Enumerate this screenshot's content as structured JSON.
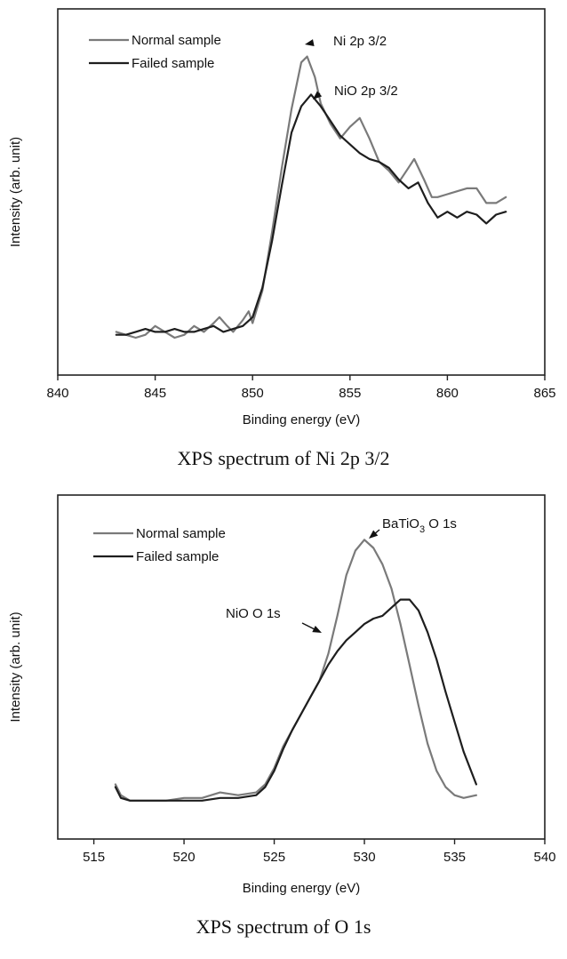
{
  "chart_data": [
    {
      "type": "line",
      "caption": "XPS spectrum of Ni 2p 3/2",
      "xlabel": "Binding energy (eV)",
      "ylabel": "Intensity (arb. unit)",
      "xlim": [
        840,
        865
      ],
      "ylim": [
        0,
        1
      ],
      "xticks": [
        840,
        845,
        850,
        855,
        860,
        865
      ],
      "yticks_shown": false,
      "grid": false,
      "legend_position": "top-left",
      "series": [
        {
          "name": "Normal sample",
          "color": "#7a7a7a",
          "x": [
            843,
            843.5,
            844,
            844.5,
            845,
            845.5,
            846,
            846.5,
            847,
            847.5,
            848,
            848.3,
            848.7,
            849,
            849.5,
            849.8,
            850,
            850.5,
            851,
            851.5,
            852,
            852.5,
            852.8,
            853.2,
            853.5,
            854,
            854.5,
            855,
            855.5,
            856,
            856.5,
            857,
            857.5,
            858,
            858.3,
            858.8,
            859.2,
            859.5,
            860,
            860.5,
            861,
            861.5,
            862,
            862.5,
            863
          ],
          "y": [
            0.06,
            0.05,
            0.04,
            0.05,
            0.08,
            0.06,
            0.04,
            0.05,
            0.08,
            0.06,
            0.09,
            0.11,
            0.08,
            0.06,
            0.1,
            0.13,
            0.09,
            0.2,
            0.4,
            0.62,
            0.82,
            0.98,
            1.0,
            0.93,
            0.84,
            0.77,
            0.72,
            0.76,
            0.79,
            0.72,
            0.64,
            0.61,
            0.57,
            0.62,
            0.65,
            0.58,
            0.52,
            0.52,
            0.53,
            0.54,
            0.55,
            0.55,
            0.5,
            0.5,
            0.52
          ]
        },
        {
          "name": "Failed sample",
          "color": "#1e1e1e",
          "x": [
            843,
            843.5,
            844,
            844.5,
            845,
            845.5,
            846,
            846.5,
            847,
            847.5,
            848,
            848.5,
            849,
            849.5,
            850,
            850.5,
            851,
            851.5,
            852,
            852.5,
            853,
            853.5,
            854,
            854.5,
            855,
            855.5,
            856,
            856.5,
            857,
            857.5,
            858,
            858.5,
            859,
            859.5,
            860,
            860.5,
            861,
            861.5,
            862,
            862.5,
            863
          ],
          "y": [
            0.05,
            0.05,
            0.06,
            0.07,
            0.06,
            0.06,
            0.07,
            0.06,
            0.06,
            0.07,
            0.08,
            0.06,
            0.07,
            0.08,
            0.11,
            0.21,
            0.37,
            0.56,
            0.74,
            0.83,
            0.87,
            0.83,
            0.78,
            0.73,
            0.7,
            0.67,
            0.65,
            0.64,
            0.62,
            0.58,
            0.55,
            0.57,
            0.5,
            0.45,
            0.47,
            0.45,
            0.47,
            0.46,
            0.43,
            0.46,
            0.47
          ]
        }
      ],
      "annotations": [
        {
          "text": "Ni 2p 3/2",
          "x": 852.9,
          "y": 1.0
        },
        {
          "text": "NiO 2p 3/2",
          "x": 853.5,
          "y": 0.86
        }
      ]
    },
    {
      "type": "line",
      "caption": "XPS spectrum of O 1s",
      "xlabel": "Binding energy (eV)",
      "ylabel": "Intensity (arb. unit)",
      "xlim": [
        513,
        540
      ],
      "ylim": [
        0,
        1
      ],
      "xticks": [
        515,
        520,
        525,
        530,
        535,
        540
      ],
      "yticks_shown": false,
      "grid": false,
      "legend_position": "top-left",
      "series": [
        {
          "name": "Normal sample",
          "color": "#7a7a7a",
          "x": [
            516.2,
            516.5,
            517,
            518,
            519,
            520,
            521,
            522,
            523,
            524,
            524.5,
            525,
            525.5,
            526,
            526.5,
            527,
            527.5,
            528,
            528.5,
            529,
            529.5,
            530,
            530.5,
            531,
            531.5,
            532,
            532.5,
            533,
            533.5,
            534,
            534.5,
            535,
            535.5,
            536.2
          ],
          "y": [
            0.1,
            0.06,
            0.04,
            0.04,
            0.04,
            0.05,
            0.05,
            0.07,
            0.06,
            0.07,
            0.1,
            0.16,
            0.24,
            0.3,
            0.36,
            0.42,
            0.48,
            0.58,
            0.72,
            0.87,
            0.96,
            1.0,
            0.97,
            0.91,
            0.82,
            0.69,
            0.54,
            0.39,
            0.25,
            0.15,
            0.09,
            0.06,
            0.05,
            0.06
          ]
        },
        {
          "name": "Failed sample",
          "color": "#1e1e1e",
          "x": [
            516.2,
            516.5,
            517,
            518,
            519,
            520,
            521,
            522,
            523,
            524,
            524.5,
            525,
            525.5,
            526,
            526.5,
            527,
            527.5,
            528,
            528.5,
            529,
            529.5,
            530,
            530.5,
            531,
            531.5,
            532,
            532.5,
            533,
            533.5,
            534,
            534.5,
            535,
            535.5,
            536.2
          ],
          "y": [
            0.09,
            0.05,
            0.04,
            0.04,
            0.04,
            0.04,
            0.04,
            0.05,
            0.05,
            0.06,
            0.09,
            0.15,
            0.23,
            0.3,
            0.36,
            0.42,
            0.48,
            0.54,
            0.59,
            0.63,
            0.66,
            0.69,
            0.71,
            0.72,
            0.75,
            0.78,
            0.78,
            0.74,
            0.66,
            0.56,
            0.44,
            0.33,
            0.22,
            0.1
          ]
        }
      ],
      "annotations": [
        {
          "text": "BaTiO",
          "sub": "3",
          "suffix": " O 1s",
          "x": 530.2,
          "y": 1.0
        },
        {
          "text": "NiO O 1s",
          "x": 527.8,
          "y": 0.52
        }
      ]
    }
  ]
}
